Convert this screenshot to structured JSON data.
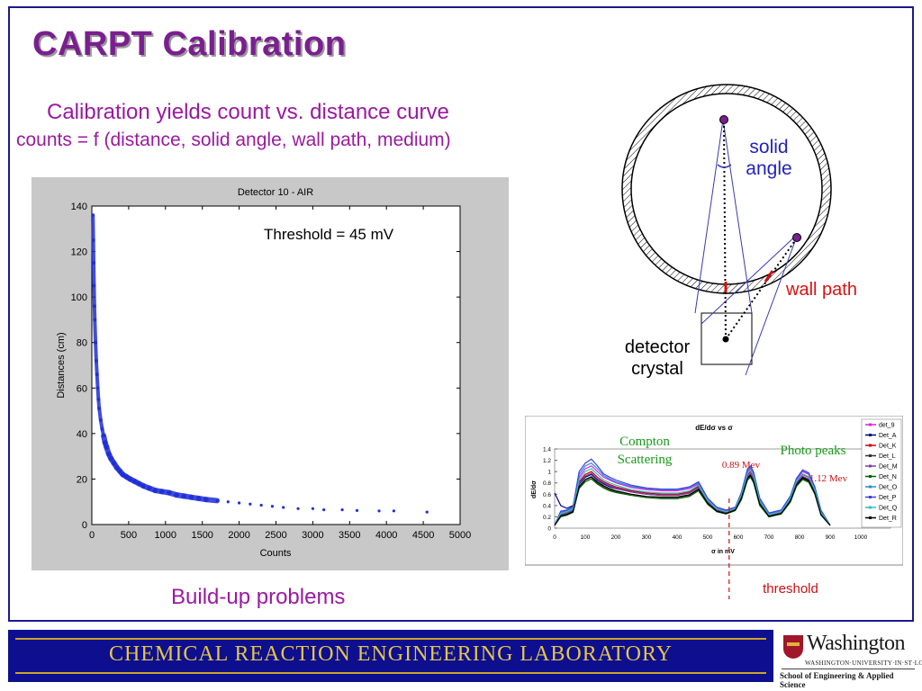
{
  "slide": {
    "title": "CARPT  Calibration",
    "subtitle1": "Calibration yields count vs. distance curve",
    "subtitle2": "counts = f (distance, solid angle, wall path, medium)",
    "build_up": "Build-up problems"
  },
  "diagram": {
    "solid_angle_line1": "solid",
    "solid_angle_line2": "angle",
    "wall_path": "wall path",
    "detector_line1": "detector",
    "detector_line2": "crystal"
  },
  "chart_data": [
    {
      "type": "scatter",
      "title": "Detector 10 - AIR",
      "xlabel": "Counts",
      "ylabel": "Distances (cm)",
      "xlim": [
        0,
        5000
      ],
      "ylim": [
        0,
        140
      ],
      "xticks": [
        0,
        500,
        1000,
        1500,
        2000,
        2500,
        3000,
        3500,
        4000,
        4500,
        5000
      ],
      "yticks": [
        0,
        20,
        40,
        60,
        80,
        100,
        120,
        140
      ],
      "annotation": "Threshold = 45 mV",
      "color": "#1f2fd8",
      "points": [
        [
          15,
          136
        ],
        [
          20,
          125
        ],
        [
          25,
          115
        ],
        [
          30,
          105
        ],
        [
          35,
          96
        ],
        [
          40,
          90
        ],
        [
          50,
          80
        ],
        [
          60,
          72
        ],
        [
          70,
          66
        ],
        [
          80,
          60
        ],
        [
          90,
          55
        ],
        [
          100,
          51
        ],
        [
          120,
          46
        ],
        [
          140,
          42
        ],
        [
          160,
          39
        ],
        [
          180,
          36
        ],
        [
          200,
          34
        ],
        [
          230,
          31
        ],
        [
          260,
          29
        ],
        [
          300,
          27
        ],
        [
          340,
          25
        ],
        [
          380,
          23.5
        ],
        [
          420,
          22
        ],
        [
          470,
          21
        ],
        [
          520,
          20
        ],
        [
          580,
          19
        ],
        [
          640,
          18
        ],
        [
          700,
          17
        ],
        [
          780,
          16
        ],
        [
          860,
          15
        ],
        [
          950,
          14.5
        ],
        [
          1050,
          14
        ],
        [
          1150,
          13
        ],
        [
          1250,
          12.5
        ],
        [
          1350,
          12
        ],
        [
          1450,
          11.5
        ],
        [
          1550,
          11
        ],
        [
          1700,
          10.5
        ],
        [
          1850,
          10
        ],
        [
          2000,
          9.5
        ],
        [
          2150,
          9
        ],
        [
          2300,
          8.5
        ],
        [
          2450,
          8
        ],
        [
          2600,
          7.5
        ],
        [
          2800,
          7
        ],
        [
          3000,
          7
        ],
        [
          3150,
          6.5
        ],
        [
          3400,
          6.5
        ],
        [
          3600,
          6.2
        ],
        [
          3900,
          6
        ],
        [
          4100,
          6
        ],
        [
          4550,
          5.5
        ]
      ]
    },
    {
      "type": "line",
      "title": "dE/dσ vs σ",
      "xlabel": "σ in mV",
      "ylabel": "dE/dσ",
      "xlim": [
        0,
        1000
      ],
      "ylim": [
        0,
        1.4
      ],
      "xticks": [
        0,
        100,
        200,
        300,
        400,
        500,
        600,
        700,
        800,
        900,
        1000
      ],
      "yticks": [
        0,
        0.2,
        0.4,
        0.6,
        0.8,
        1,
        1.2,
        1.4
      ],
      "legend_position": "right",
      "annotations": {
        "compton_line1": "Compton",
        "compton_line2": "Scattering",
        "photo_peaks": "Photo peaks",
        "peak1": "0.89 Mev",
        "peak2": "1.12 Mev",
        "threshold": "threshold"
      },
      "threshold_x": 570,
      "x": [
        0,
        20,
        40,
        60,
        80,
        100,
        120,
        140,
        160,
        180,
        200,
        250,
        300,
        350,
        400,
        440,
        470,
        500,
        530,
        560,
        590,
        610,
        630,
        640,
        650,
        670,
        700,
        740,
        770,
        790,
        810,
        830,
        850,
        870,
        900
      ],
      "series": [
        {
          "name": "det_9",
          "color": "#e020e0",
          "values": [
            0.05,
            0.3,
            0.3,
            0.35,
            0.9,
            1.05,
            1.1,
            1.0,
            0.9,
            0.85,
            0.8,
            0.72,
            0.68,
            0.66,
            0.66,
            0.7,
            0.78,
            0.5,
            0.35,
            0.3,
            0.35,
            0.6,
            1.0,
            1.05,
            0.95,
            0.5,
            0.25,
            0.3,
            0.55,
            0.85,
            1.0,
            0.95,
            0.7,
            0.3,
            0.05
          ]
        },
        {
          "name": "Det_A",
          "color": "#000080",
          "values": [
            0.62,
            0.4,
            0.35,
            0.4,
            0.78,
            0.9,
            0.95,
            0.85,
            0.78,
            0.73,
            0.7,
            0.64,
            0.6,
            0.58,
            0.58,
            0.62,
            0.72,
            0.48,
            0.32,
            0.28,
            0.33,
            0.55,
            0.9,
            0.95,
            0.85,
            0.45,
            0.22,
            0.28,
            0.5,
            0.8,
            0.9,
            0.85,
            0.65,
            0.25,
            0.05
          ]
        },
        {
          "name": "Det_K",
          "color": "#cc0000",
          "values": [
            0.05,
            0.25,
            0.28,
            0.33,
            0.82,
            0.95,
            1.0,
            0.9,
            0.82,
            0.77,
            0.73,
            0.66,
            0.62,
            0.6,
            0.6,
            0.64,
            0.74,
            0.47,
            0.33,
            0.28,
            0.34,
            0.58,
            0.95,
            1.0,
            0.9,
            0.47,
            0.23,
            0.28,
            0.52,
            0.82,
            0.95,
            0.9,
            0.67,
            0.27,
            0.05
          ]
        },
        {
          "name": "Det_L",
          "color": "#333333",
          "values": [
            0.05,
            0.22,
            0.25,
            0.3,
            0.72,
            0.85,
            0.9,
            0.8,
            0.73,
            0.68,
            0.65,
            0.6,
            0.56,
            0.54,
            0.54,
            0.58,
            0.68,
            0.44,
            0.3,
            0.26,
            0.32,
            0.52,
            0.88,
            0.92,
            0.82,
            0.42,
            0.2,
            0.26,
            0.48,
            0.76,
            0.88,
            0.83,
            0.62,
            0.24,
            0.05
          ]
        },
        {
          "name": "Det_M",
          "color": "#8040a0",
          "values": [
            0.05,
            0.24,
            0.27,
            0.32,
            0.8,
            0.92,
            0.97,
            0.87,
            0.8,
            0.75,
            0.71,
            0.64,
            0.6,
            0.58,
            0.58,
            0.62,
            0.72,
            0.46,
            0.32,
            0.27,
            0.33,
            0.56,
            0.92,
            0.97,
            0.87,
            0.45,
            0.22,
            0.27,
            0.5,
            0.8,
            0.92,
            0.87,
            0.65,
            0.26,
            0.05
          ]
        },
        {
          "name": "Det_N",
          "color": "#006000",
          "values": [
            0.05,
            0.2,
            0.23,
            0.28,
            0.7,
            0.82,
            0.87,
            0.78,
            0.71,
            0.66,
            0.63,
            0.58,
            0.54,
            0.52,
            0.52,
            0.56,
            0.66,
            0.42,
            0.29,
            0.25,
            0.31,
            0.5,
            0.85,
            0.9,
            0.8,
            0.4,
            0.2,
            0.25,
            0.46,
            0.74,
            0.86,
            0.81,
            0.6,
            0.23,
            0.05
          ]
        },
        {
          "name": "Det_O",
          "color": "#2090d0",
          "values": [
            0.05,
            0.28,
            0.3,
            0.36,
            0.95,
            1.1,
            1.15,
            1.05,
            0.93,
            0.87,
            0.82,
            0.74,
            0.7,
            0.68,
            0.68,
            0.72,
            0.8,
            0.52,
            0.36,
            0.31,
            0.36,
            0.62,
            1.02,
            1.08,
            0.97,
            0.52,
            0.26,
            0.31,
            0.56,
            0.87,
            1.02,
            0.97,
            0.72,
            0.31,
            0.05
          ]
        },
        {
          "name": "Det_P",
          "color": "#4040e0",
          "values": [
            0.05,
            0.3,
            0.32,
            0.38,
            1.0,
            1.15,
            1.22,
            1.1,
            0.96,
            0.9,
            0.85,
            0.76,
            0.71,
            0.69,
            0.69,
            0.73,
            0.82,
            0.53,
            0.37,
            0.32,
            0.37,
            0.63,
            1.05,
            1.1,
            0.99,
            0.53,
            0.27,
            0.32,
            0.57,
            0.88,
            1.03,
            0.98,
            0.73,
            0.32,
            0.05
          ]
        },
        {
          "name": "Det_Q",
          "color": "#30c0c0",
          "values": [
            0.05,
            0.26,
            0.29,
            0.34,
            0.86,
            1.0,
            1.05,
            0.95,
            0.85,
            0.8,
            0.76,
            0.68,
            0.64,
            0.62,
            0.62,
            0.66,
            0.76,
            0.49,
            0.34,
            0.29,
            0.35,
            0.59,
            0.97,
            1.02,
            0.92,
            0.48,
            0.24,
            0.29,
            0.53,
            0.83,
            0.96,
            0.91,
            0.68,
            0.28,
            0.05
          ]
        },
        {
          "name": "Det_R",
          "color": "#000000",
          "values": [
            0.05,
            0.22,
            0.24,
            0.29,
            0.74,
            0.86,
            0.91,
            0.82,
            0.75,
            0.7,
            0.66,
            0.6,
            0.56,
            0.55,
            0.55,
            0.59,
            0.69,
            0.44,
            0.3,
            0.26,
            0.32,
            0.53,
            0.88,
            0.93,
            0.83,
            0.43,
            0.21,
            0.26,
            0.48,
            0.77,
            0.89,
            0.84,
            0.62,
            0.24,
            0.05
          ]
        }
      ]
    }
  ],
  "footer": {
    "lab_name": "CHEMICAL  REACTION  ENGINEERING  LABORATORY",
    "university": "Washington",
    "university_sub": "WASHINGTON·UNIVERSITY·IN·ST·LOUIS",
    "school": "School of Engineering & Applied Science"
  },
  "colors": {
    "title": "#7a1f8f",
    "subtitle": "#9a1aa0",
    "footer_bg": "#0d0f8e",
    "footer_text": "#e6c44a",
    "frame": "#1a1a8c"
  }
}
